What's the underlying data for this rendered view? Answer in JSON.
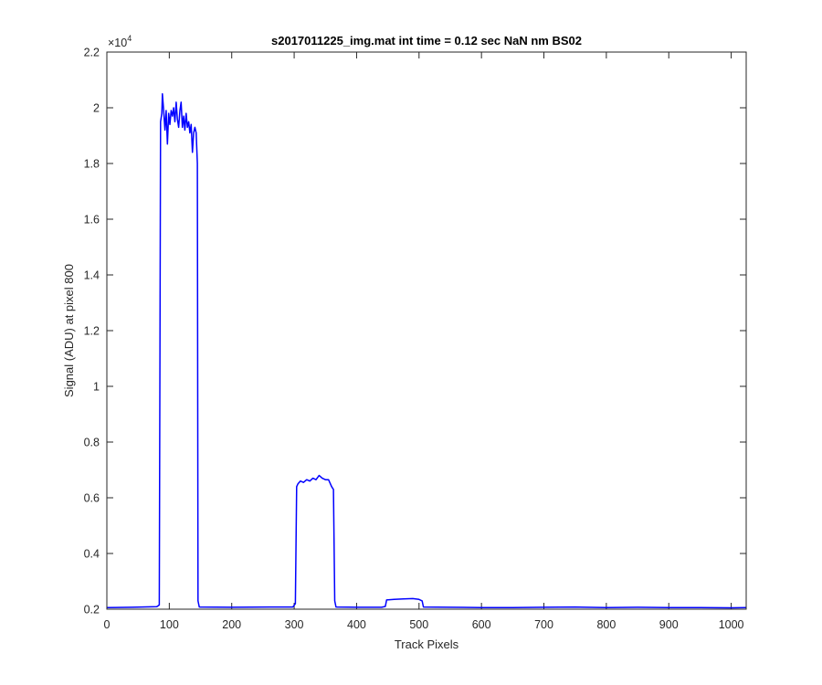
{
  "chart_data": {
    "type": "line",
    "title": "s2017011225_img.mat int time = 0.12 sec  NaN nm BS02",
    "xlabel": "Track Pixels",
    "ylabel": "Signal (ADU) at pixel 800",
    "xlim": [
      0,
      1024
    ],
    "ylim": [
      2000,
      22000
    ],
    "x_ticks": [
      "0",
      "100",
      "200",
      "300",
      "400",
      "500",
      "600",
      "700",
      "800",
      "900",
      "1000"
    ],
    "y_ticks": [
      "0.2",
      "0.4",
      "0.6",
      "0.8",
      "1",
      "1.2",
      "1.4",
      "1.6",
      "1.8",
      "2",
      "2.2"
    ],
    "y_exponent_base": "×10",
    "y_exponent_power": "4",
    "grid": false,
    "series": [
      {
        "color": "#0000ff",
        "points": [
          [
            0,
            2060
          ],
          [
            40,
            2070
          ],
          [
            80,
            2090
          ],
          [
            84,
            2150
          ],
          [
            86,
            19500
          ],
          [
            88,
            19800
          ],
          [
            89,
            20500
          ],
          [
            91,
            19900
          ],
          [
            93,
            19200
          ],
          [
            95,
            19900
          ],
          [
            97,
            18700
          ],
          [
            99,
            19800
          ],
          [
            101,
            19400
          ],
          [
            103,
            19900
          ],
          [
            105,
            19700
          ],
          [
            107,
            20000
          ],
          [
            109,
            19500
          ],
          [
            111,
            20200
          ],
          [
            113,
            19600
          ],
          [
            115,
            19300
          ],
          [
            117,
            19900
          ],
          [
            119,
            20200
          ],
          [
            121,
            19300
          ],
          [
            123,
            19700
          ],
          [
            125,
            19200
          ],
          [
            127,
            19800
          ],
          [
            129,
            19300
          ],
          [
            131,
            19500
          ],
          [
            133,
            19100
          ],
          [
            135,
            19400
          ],
          [
            137,
            18400
          ],
          [
            139,
            19100
          ],
          [
            141,
            19300
          ],
          [
            143,
            19100
          ],
          [
            145,
            18000
          ],
          [
            146,
            2300
          ],
          [
            148,
            2080
          ],
          [
            200,
            2070
          ],
          [
            260,
            2080
          ],
          [
            298,
            2080
          ],
          [
            302,
            2200
          ],
          [
            304,
            6400
          ],
          [
            306,
            6500
          ],
          [
            310,
            6600
          ],
          [
            315,
            6550
          ],
          [
            320,
            6650
          ],
          [
            325,
            6600
          ],
          [
            330,
            6700
          ],
          [
            335,
            6650
          ],
          [
            340,
            6800
          ],
          [
            345,
            6700
          ],
          [
            350,
            6650
          ],
          [
            355,
            6650
          ],
          [
            360,
            6400
          ],
          [
            363,
            6300
          ],
          [
            365,
            2300
          ],
          [
            367,
            2080
          ],
          [
            400,
            2070
          ],
          [
            440,
            2070
          ],
          [
            446,
            2100
          ],
          [
            448,
            2330
          ],
          [
            460,
            2350
          ],
          [
            475,
            2370
          ],
          [
            490,
            2380
          ],
          [
            500,
            2350
          ],
          [
            505,
            2300
          ],
          [
            507,
            2080
          ],
          [
            550,
            2070
          ],
          [
            600,
            2060
          ],
          [
            650,
            2060
          ],
          [
            700,
            2070
          ],
          [
            750,
            2080
          ],
          [
            800,
            2060
          ],
          [
            850,
            2070
          ],
          [
            900,
            2060
          ],
          [
            950,
            2060
          ],
          [
            1000,
            2050
          ],
          [
            1024,
            2060
          ]
        ]
      }
    ]
  }
}
